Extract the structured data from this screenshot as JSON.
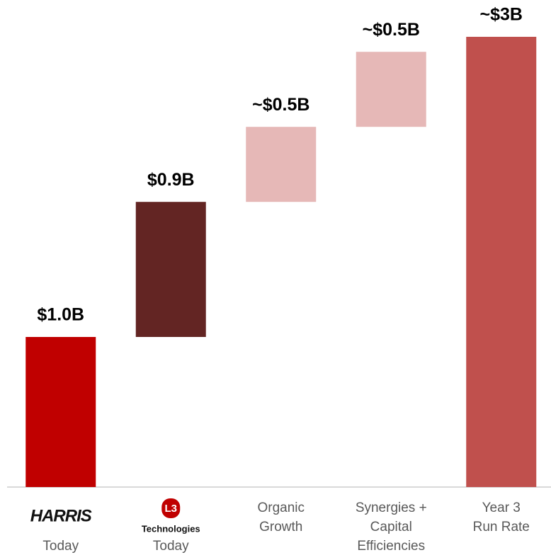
{
  "chart_data": {
    "type": "waterfall",
    "categories": [
      [
        "Today"
      ],
      [
        "Today"
      ],
      [
        "Organic",
        "Growth"
      ],
      [
        "Synergies +",
        "Capital",
        "Efficiencies"
      ],
      [
        "Year 3",
        "Run Rate"
      ]
    ],
    "logos": [
      {
        "name": "HARRIS"
      },
      {
        "badge": "L3",
        "name": "Technologies"
      }
    ],
    "values": [
      1.0,
      0.9,
      0.5,
      0.5,
      3
    ],
    "value_labels": [
      "$1.0B",
      "$0.9B",
      "~$0.5B",
      "~$0.5B",
      "~$3B"
    ],
    "measure": [
      "relative",
      "relative",
      "relative",
      "relative",
      "total"
    ],
    "colors": [
      "#c00000",
      "#632523",
      "#e6b8b7",
      "#e6b8b7",
      "#c0504d"
    ]
  }
}
